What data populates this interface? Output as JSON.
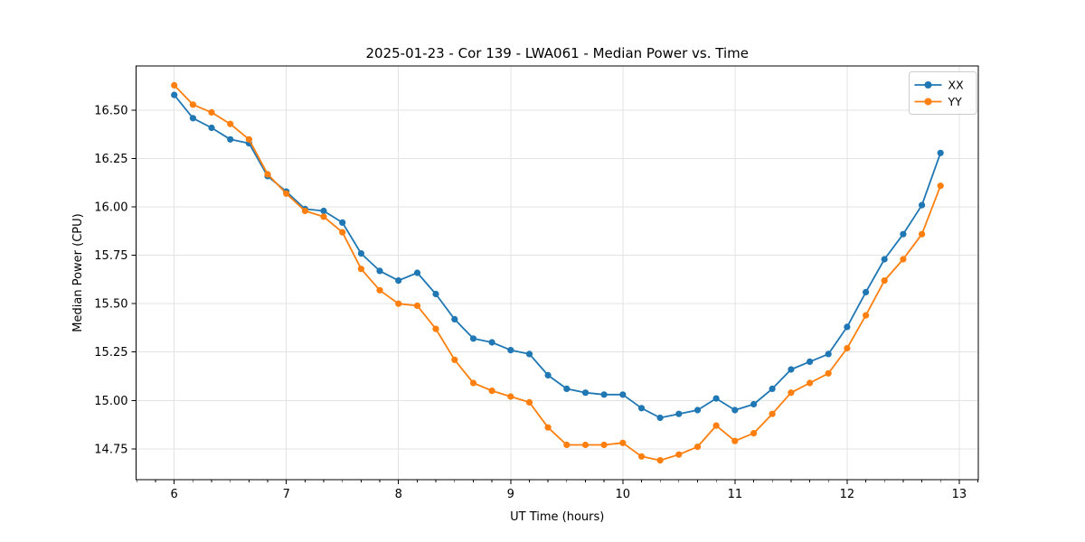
{
  "figure": {
    "background": "#ffffff"
  },
  "chart_data": {
    "type": "line",
    "title": "2025-01-23 - Cor 139 - LWA061 - Median Power vs. Time",
    "xlabel": "UT Time (hours)",
    "ylabel": "Median Power (CPU)",
    "xlim": [
      5.66,
      13.17
    ],
    "ylim": [
      14.59,
      16.73
    ],
    "xticks": [
      6,
      7,
      8,
      9,
      10,
      11,
      12,
      13
    ],
    "xtick_labels": [
      "6",
      "7",
      "8",
      "9",
      "10",
      "11",
      "12",
      "13"
    ],
    "x_minor_tick_step": 0.166667,
    "yticks": [
      14.75,
      15.0,
      15.25,
      15.5,
      15.75,
      16.0,
      16.25,
      16.5
    ],
    "ytick_labels": [
      "14.75",
      "15.00",
      "15.25",
      "15.50",
      "15.75",
      "16.00",
      "16.25",
      "16.50"
    ],
    "grid": true,
    "legend_position": "upper right",
    "x": [
      6.0,
      6.167,
      6.333,
      6.5,
      6.667,
      6.833,
      7.0,
      7.167,
      7.333,
      7.5,
      7.667,
      7.833,
      8.0,
      8.167,
      8.333,
      8.5,
      8.667,
      8.833,
      9.0,
      9.167,
      9.333,
      9.5,
      9.667,
      9.833,
      10.0,
      10.167,
      10.333,
      10.5,
      10.667,
      10.833,
      11.0,
      11.167,
      11.333,
      11.5,
      11.667,
      11.833,
      12.0,
      12.167,
      12.333,
      12.5,
      12.667,
      12.833
    ],
    "series": [
      {
        "name": "XX",
        "color": "#1f77b4",
        "values": [
          16.58,
          16.46,
          16.41,
          16.35,
          16.33,
          16.16,
          16.08,
          15.99,
          15.98,
          15.92,
          15.76,
          15.67,
          15.62,
          15.66,
          15.55,
          15.42,
          15.32,
          15.3,
          15.26,
          15.24,
          15.13,
          15.06,
          15.04,
          15.03,
          15.03,
          14.96,
          14.91,
          14.93,
          14.95,
          15.01,
          14.95,
          14.98,
          15.06,
          15.16,
          15.2,
          15.24,
          15.38,
          15.56,
          15.73,
          15.86,
          16.01,
          16.28
        ]
      },
      {
        "name": "YY",
        "color": "#ff7f0e",
        "values": [
          16.63,
          16.53,
          16.49,
          16.43,
          16.35,
          16.17,
          16.07,
          15.98,
          15.95,
          15.87,
          15.68,
          15.57,
          15.5,
          15.49,
          15.37,
          15.21,
          15.09,
          15.05,
          15.02,
          14.99,
          14.86,
          14.77,
          14.77,
          14.77,
          14.78,
          14.71,
          14.69,
          14.72,
          14.76,
          14.87,
          14.79,
          14.83,
          14.93,
          15.04,
          15.09,
          15.14,
          15.27,
          15.44,
          15.62,
          15.73,
          15.86,
          16.11
        ]
      }
    ]
  },
  "style": {
    "grid_color": "#e3e3e3",
    "spine_color": "#000000",
    "tick_color": "#000000",
    "text_color": "#000000",
    "legend_border_color": "#cccccc",
    "legend_background": "#ffffff"
  }
}
